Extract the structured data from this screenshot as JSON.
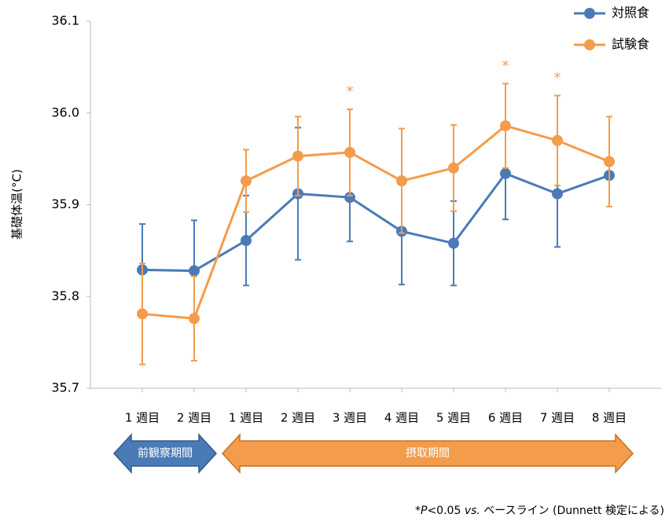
{
  "chart_data": {
    "type": "line",
    "y_label": "基礎体温(°C)",
    "categories": [
      "1 週目",
      "2 週目",
      "1 週目",
      "2 週目",
      "3 週目",
      "4 週目",
      "5 週目",
      "6 週目",
      "7 週目",
      "8 週目"
    ],
    "ylim": [
      35.7,
      36.1
    ],
    "yticks": [
      {
        "value": 35.7,
        "label": "35.7"
      },
      {
        "value": 35.8,
        "label": "35.8"
      },
      {
        "value": 35.9,
        "label": "35.9"
      },
      {
        "value": 36.0,
        "label": "36.0"
      },
      {
        "value": 36.1,
        "label": "36.1"
      }
    ],
    "series": [
      {
        "name": "対照食",
        "color": "#4a7bb7",
        "values": [
          35.829,
          35.828,
          35.861,
          35.912,
          35.908,
          35.871,
          35.858,
          35.934,
          35.912,
          35.932
        ],
        "errors": [
          0.05,
          0.055,
          0.049,
          0.072,
          0.048,
          0.058,
          0.046,
          0.05,
          0.058,
          0
        ]
      },
      {
        "name": "試験食",
        "color": "#f39c4b",
        "values": [
          35.781,
          35.776,
          35.926,
          35.953,
          35.957,
          35.926,
          35.94,
          35.986,
          35.97,
          35.947
        ],
        "errors": [
          0.055,
          0.046,
          0.034,
          0.043,
          0.047,
          0.057,
          0.047,
          0.046,
          0.049,
          0.049
        ],
        "significance": [
          null,
          null,
          null,
          null,
          "*",
          null,
          null,
          "*",
          "*",
          null
        ]
      }
    ],
    "periods": [
      {
        "label": "前観察期間",
        "color": "#4a7bb7"
      },
      {
        "label": "摂取期間",
        "color": "#f39c4b"
      }
    ],
    "footnote": [
      {
        "text": "*",
        "italic": false
      },
      {
        "text": "P",
        "italic": true
      },
      {
        "text": "<0.05 ",
        "italic": false
      },
      {
        "text": "vs.",
        "italic": true
      },
      {
        "text": " ベースライン (Dunnett 検定による)",
        "italic": false
      }
    ]
  }
}
